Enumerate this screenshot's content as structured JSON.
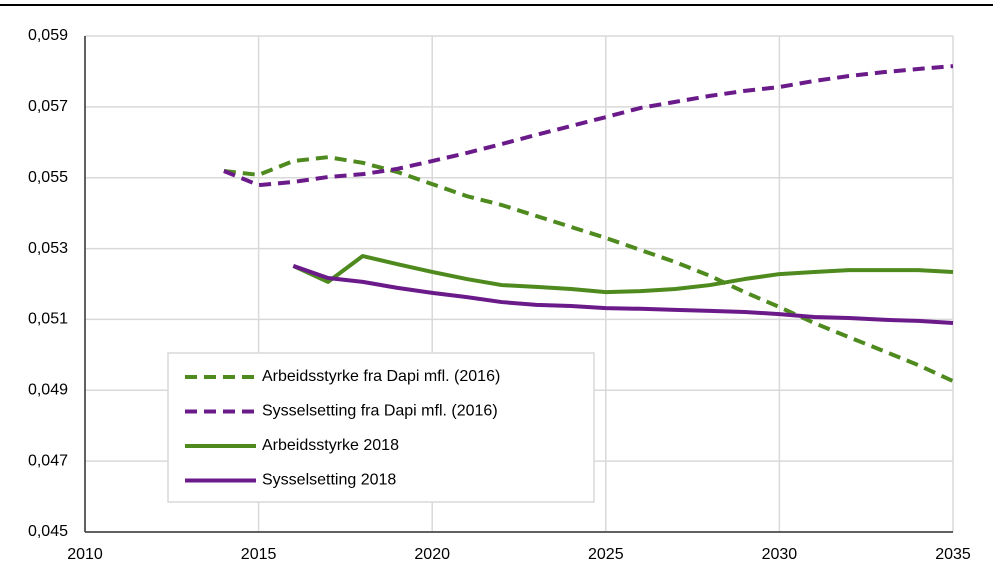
{
  "chart_data": {
    "type": "line",
    "x": [
      2014,
      2015,
      2016,
      2017,
      2018,
      2019,
      2020,
      2021,
      2022,
      2023,
      2024,
      2025,
      2026,
      2027,
      2028,
      2029,
      2030,
      2031,
      2032,
      2033,
      2034,
      2035
    ],
    "series": [
      {
        "name": "Arbeidsstyrke fra Dapi mfl. (2016)",
        "color": "#4e8a1e",
        "dashed": true,
        "values": [
          0.05519,
          0.05508,
          0.05547,
          0.05558,
          0.05542,
          0.05516,
          0.05482,
          0.05448,
          0.05423,
          0.05392,
          0.05361,
          0.0533,
          0.05296,
          0.05262,
          0.05223,
          0.05177,
          0.05135,
          0.0509,
          0.0505,
          0.05011,
          0.04971,
          0.04926
        ]
      },
      {
        "name": "Sysselsetting fra Dapi mfl. (2016)",
        "color": "#6b1a8a",
        "dashed": true,
        "values": [
          0.05519,
          0.05479,
          0.05488,
          0.05502,
          0.0551,
          0.05525,
          0.05547,
          0.0557,
          0.05595,
          0.05621,
          0.05646,
          0.05671,
          0.05697,
          0.05714,
          0.05731,
          0.05745,
          0.05756,
          0.05773,
          0.05787,
          0.05798,
          0.05807,
          0.05815
        ]
      },
      {
        "name": "Arbeidsstyrke 2018",
        "color": "#4e8a1e",
        "dashed": false,
        "values": [
          null,
          null,
          0.05251,
          0.05206,
          0.05279,
          0.05256,
          0.05234,
          0.05214,
          0.05197,
          0.05192,
          0.05186,
          0.05177,
          0.0518,
          0.05186,
          0.05197,
          0.05214,
          0.05228,
          0.05234,
          0.05239,
          0.05239,
          0.05239,
          0.05234
        ]
      },
      {
        "name": "Sysselsetting 2018",
        "color": "#6b1a8a",
        "dashed": false,
        "values": [
          null,
          null,
          0.05251,
          0.05217,
          0.05206,
          0.05189,
          0.05175,
          0.05163,
          0.05149,
          0.05141,
          0.05138,
          0.05132,
          0.0513,
          0.05127,
          0.05124,
          0.05121,
          0.05115,
          0.05107,
          0.05104,
          0.05099,
          0.05096,
          0.0509
        ]
      }
    ],
    "xlim": [
      2010,
      2035
    ],
    "xticks": [
      2010,
      2015,
      2020,
      2025,
      2030,
      2035
    ],
    "ylim": [
      0.045,
      0.059
    ],
    "yticks": [
      {
        "value": 0.045,
        "label": "0,045"
      },
      {
        "value": 0.047,
        "label": "0,047"
      },
      {
        "value": 0.049,
        "label": "0,049"
      },
      {
        "value": 0.051,
        "label": "0,051"
      },
      {
        "value": 0.053,
        "label": "0,053"
      },
      {
        "value": 0.055,
        "label": "0,055"
      },
      {
        "value": 0.057,
        "label": "0,057"
      },
      {
        "value": 0.059,
        "label": "0,059"
      }
    ],
    "grid": true,
    "legend": "lower left"
  }
}
